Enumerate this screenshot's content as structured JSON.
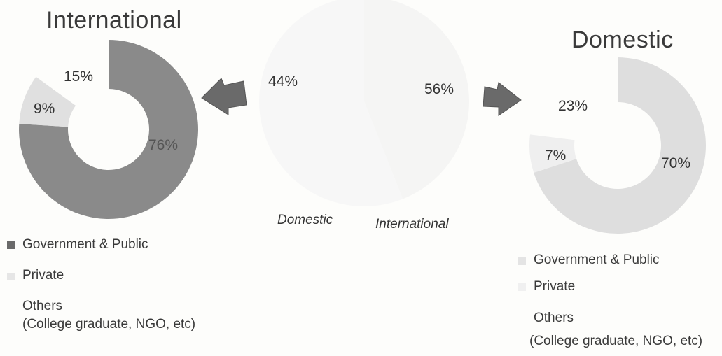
{
  "chart_data": [
    {
      "type": "pie",
      "title": "",
      "categories": [
        "Domestic",
        "International"
      ],
      "values": [
        44,
        56
      ],
      "labels": [
        "44%",
        "56%"
      ]
    },
    {
      "type": "pie",
      "title": "International",
      "categories": [
        "Government & Public",
        "Private",
        "Others\n(College graduate, NGO, etc)"
      ],
      "values": [
        76,
        9,
        15
      ],
      "labels": [
        "76%",
        "9%",
        "15%"
      ]
    },
    {
      "type": "pie",
      "title": "Domestic",
      "categories": [
        "Government & Public",
        "Private",
        "Others\n(College graduate, NGO, etc)"
      ],
      "values": [
        70,
        7,
        23
      ],
      "labels": [
        "70%",
        "7%",
        "23%"
      ]
    }
  ],
  "legend_left": {
    "item1": "Government & Public",
    "item2": "Private",
    "item3_line1": "Others",
    "item3_line2": "(College graduate, NGO, etc)"
  },
  "legend_right": {
    "item1": "Government & Public",
    "item2": "Private",
    "item3_line1": "Others",
    "item3_line2": "(College graduate, NGO, etc)"
  },
  "colors": {
    "intl_gov": "#8a8a8a",
    "intl_private": "#e0e0e0",
    "intl_others": "#fdfdfb",
    "dom_gov": "#dedede",
    "dom_private": "#efefef",
    "dom_others": "#fdfdfb",
    "center_domestic": "#f5f5f4",
    "center_international": "#f7f7f7",
    "arrow": "#6a6a6a"
  },
  "icons": {
    "arrow_left": "arrow-left-icon",
    "arrow_right": "arrow-right-icon"
  }
}
